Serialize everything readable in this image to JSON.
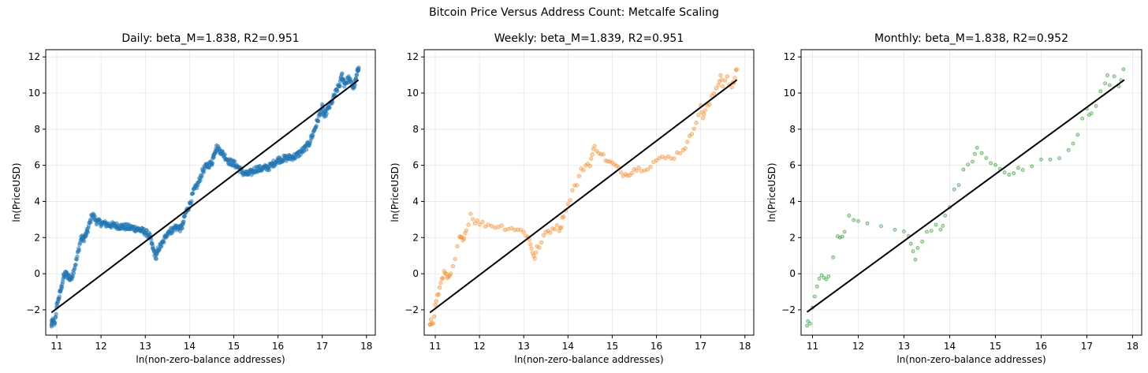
{
  "figure": {
    "suptitle": "Bitcoin Price Versus Address Count: Metcalfe Scaling"
  },
  "chart_data": [
    {
      "type": "scatter",
      "title": "Daily: beta_M=1.838, R2=0.951",
      "xlabel": "ln(non-zero-balance addresses)",
      "ylabel": "ln(PriceUSD)",
      "xlim": [
        10.75,
        18.2
      ],
      "ylim": [
        -3.4,
        12.4
      ],
      "xticks": [
        11,
        12,
        13,
        14,
        15,
        16,
        17,
        18
      ],
      "yticks": [
        -2,
        0,
        2,
        4,
        6,
        8,
        10,
        12
      ],
      "grid": true,
      "color": "#1f77b4",
      "density": "daily",
      "fit": {
        "x": [
          10.88,
          17.82
        ],
        "y": [
          -2.15,
          10.72
        ],
        "color": "#000000"
      }
    },
    {
      "type": "scatter",
      "title": "Weekly: beta_M=1.839, R2=0.951",
      "xlabel": "ln(non-zero-balance addresses)",
      "ylabel": "ln(PriceUSD)",
      "xlim": [
        10.75,
        18.2
      ],
      "ylim": [
        -3.4,
        12.4
      ],
      "xticks": [
        11,
        12,
        13,
        14,
        15,
        16,
        17,
        18
      ],
      "yticks": [
        -2,
        0,
        2,
        4,
        6,
        8,
        10,
        12
      ],
      "grid": true,
      "color": "#ff7f0e",
      "density": "weekly",
      "fit": {
        "x": [
          10.88,
          17.82
        ],
        "y": [
          -2.15,
          10.73
        ],
        "color": "#000000"
      }
    },
    {
      "type": "scatter",
      "title": "Monthly: beta_M=1.838, R2=0.952",
      "xlabel": "ln(non-zero-balance addresses)",
      "ylabel": "ln(PriceUSD)",
      "xlim": [
        10.75,
        18.2
      ],
      "ylim": [
        -3.4,
        12.4
      ],
      "xticks": [
        11,
        12,
        13,
        14,
        15,
        16,
        17,
        18
      ],
      "yticks": [
        -2,
        0,
        2,
        4,
        6,
        8,
        10,
        12
      ],
      "grid": true,
      "color": "#2ca02c",
      "density": "monthly",
      "fit": {
        "x": [
          10.88,
          17.82
        ],
        "y": [
          -2.12,
          10.73
        ],
        "color": "#000000"
      }
    }
  ],
  "trajectory": {
    "x": [
      10.88,
      10.9,
      10.95,
      11.0,
      11.05,
      11.1,
      11.15,
      11.2,
      11.25,
      11.3,
      11.35,
      11.45,
      11.55,
      11.6,
      11.65,
      11.7,
      11.8,
      11.9,
      12.0,
      12.2,
      12.5,
      12.8,
      13.0,
      13.1,
      13.15,
      13.2,
      13.25,
      13.3,
      13.4,
      13.5,
      13.6,
      13.7,
      13.8,
      13.85,
      13.9,
      14.0,
      14.1,
      14.2,
      14.3,
      14.4,
      14.5,
      14.55,
      14.6,
      14.7,
      14.8,
      14.9,
      15.0,
      15.1,
      15.2,
      15.3,
      15.4,
      15.5,
      15.6,
      15.8,
      16.0,
      16.2,
      16.4,
      16.6,
      16.7,
      16.8,
      16.9,
      17.0,
      17.05,
      17.1,
      17.2,
      17.3,
      17.4,
      17.45,
      17.5,
      17.6,
      17.7,
      17.75,
      17.8,
      17.83
    ],
    "y": [
      -2.9,
      -2.6,
      -2.8,
      -1.8,
      -1.3,
      -0.8,
      -0.2,
      0.0,
      -0.1,
      -0.3,
      -0.1,
      0.8,
      2.0,
      1.9,
      2.1,
      2.4,
      3.3,
      2.9,
      2.8,
      2.7,
      2.6,
      2.5,
      2.3,
      2.1,
      1.6,
      1.2,
      0.9,
      1.4,
      1.7,
      2.3,
      2.4,
      2.6,
      2.5,
      2.7,
      3.3,
      3.8,
      4.6,
      5.0,
      5.7,
      6.0,
      6.1,
      6.6,
      7.0,
      6.8,
      6.5,
      6.2,
      6.1,
      5.9,
      5.6,
      5.5,
      5.6,
      5.8,
      5.8,
      5.9,
      6.3,
      6.4,
      6.5,
      6.9,
      7.2,
      7.8,
      8.5,
      9.2,
      8.7,
      9.0,
      9.4,
      10.0,
      10.5,
      11.0,
      10.5,
      10.8,
      10.3,
      10.6,
      11.2,
      11.6
    ]
  }
}
